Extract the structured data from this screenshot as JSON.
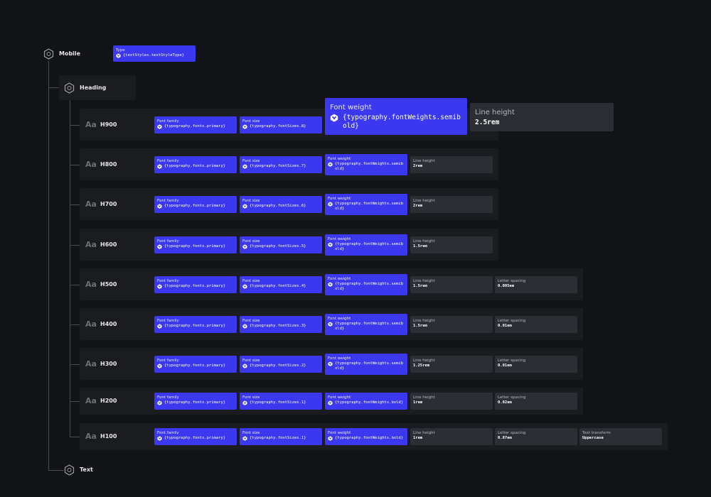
{
  "root": {
    "label": "Mobile",
    "chip": {
      "label": "Type",
      "value": "{textStyles.textStyleType}"
    }
  },
  "heading": {
    "label": "Heading"
  },
  "sample": "Aa",
  "rows": [
    {
      "name": "H900",
      "props": [
        {
          "label": "Font family",
          "value": "{typography.fonts.primary}"
        },
        {
          "label": "Font size",
          "value": "{typography.fontSizes.8}"
        },
        {
          "label": "Font weight",
          "value": "{typography.fontWeights.semibold}"
        },
        {
          "label": "Line height",
          "value": "2.5rem"
        }
      ]
    },
    {
      "name": "H800",
      "props": [
        {
          "label": "Font family",
          "value": "{typography.fonts.primary}"
        },
        {
          "label": "Font size",
          "value": "{typography.fontSizes.7}"
        },
        {
          "label": "Font weight",
          "value": "{typography.fontWeights.semibold}"
        },
        {
          "label": "Line height",
          "value": "2rem"
        }
      ]
    },
    {
      "name": "H700",
      "props": [
        {
          "label": "Font family",
          "value": "{typography.fonts.primary}"
        },
        {
          "label": "Font size",
          "value": "{typography.fontSizes.6}"
        },
        {
          "label": "Font weight",
          "value": "{typography.fontWeights.semibold}"
        },
        {
          "label": "Line height",
          "value": "2rem"
        }
      ]
    },
    {
      "name": "H600",
      "props": [
        {
          "label": "Font family",
          "value": "{typography.fonts.primary}"
        },
        {
          "label": "Font size",
          "value": "{typography.fontSizes.5}"
        },
        {
          "label": "Font weight",
          "value": "{typography.fontWeights.semibold}"
        },
        {
          "label": "Line height",
          "value": "1.5rem"
        }
      ]
    },
    {
      "name": "H500",
      "props": [
        {
          "label": "Font family",
          "value": "{typography.fonts.primary}"
        },
        {
          "label": "Font size",
          "value": "{typography.fontSizes.4}"
        },
        {
          "label": "Font weight",
          "value": "{typography.fontWeights.semibold}"
        },
        {
          "label": "Line height",
          "value": "1.5rem"
        },
        {
          "label": "Letter spacing",
          "value": "0.005em"
        }
      ]
    },
    {
      "name": "H400",
      "props": [
        {
          "label": "Font family",
          "value": "{typography.fonts.primary}"
        },
        {
          "label": "Font size",
          "value": "{typography.fontSizes.3}"
        },
        {
          "label": "Font weight",
          "value": "{typography.fontWeights.semibold}"
        },
        {
          "label": "Line height",
          "value": "1.5rem"
        },
        {
          "label": "Letter spacing",
          "value": "0.01em"
        }
      ]
    },
    {
      "name": "H300",
      "props": [
        {
          "label": "Font family",
          "value": "{typography.fonts.primary}"
        },
        {
          "label": "Font size",
          "value": "{typography.fontSizes.2}"
        },
        {
          "label": "Font weight",
          "value": "{typography.fontWeights.semibold}"
        },
        {
          "label": "Line height",
          "value": "1.25rem"
        },
        {
          "label": "Letter spacing",
          "value": "0.01em"
        }
      ]
    },
    {
      "name": "H200",
      "props": [
        {
          "label": "Font family",
          "value": "{typography.fonts.primary}"
        },
        {
          "label": "Font size",
          "value": "{typography.fontSizes.1}"
        },
        {
          "label": "Font weight",
          "value": "{typography.fontWeights.bold}"
        },
        {
          "label": "Line height",
          "value": "1rem"
        },
        {
          "label": "Letter spacing",
          "value": "0.02em"
        }
      ]
    },
    {
      "name": "H100",
      "props": [
        {
          "label": "Font family",
          "value": "{typography.fonts.primary}"
        },
        {
          "label": "Font size",
          "value": "{typography.fontSizes.1}"
        },
        {
          "label": "Font weight",
          "value": "{typography.fontWeights.bold}"
        },
        {
          "label": "Line height",
          "value": "1rem"
        },
        {
          "label": "Letter spacing",
          "value": "0.07em"
        },
        {
          "label": "Text transform",
          "value": "Uppercase"
        }
      ]
    }
  ],
  "text": {
    "label": "Text"
  }
}
